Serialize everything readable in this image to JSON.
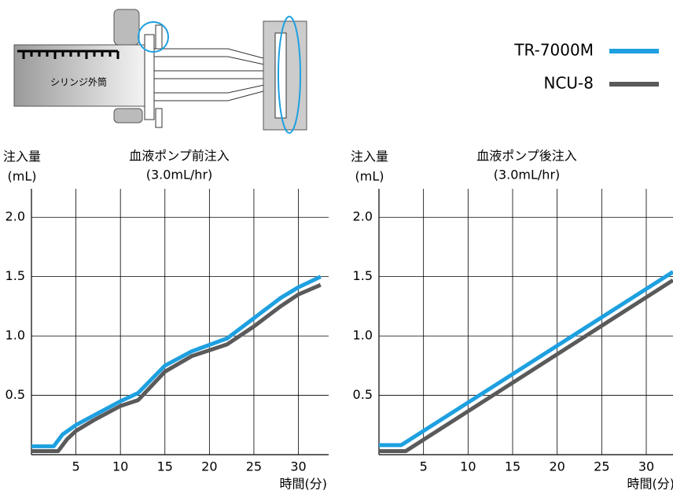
{
  "diagram": {
    "label": "シリンジ外筒"
  },
  "chart_data": [
    {
      "type": "line",
      "title": "血液ポンプ前注入",
      "subtitle": "(3.0mL/hr)",
      "ylabel": "注入量",
      "yunit": "(mL)",
      "xlabel": "時間(分)",
      "xlim": [
        0,
        33.4
      ],
      "ylim": [
        0,
        2.24
      ],
      "xticks": [
        5,
        10,
        15,
        20,
        25,
        30
      ],
      "yticks": [
        0.5,
        {
          "value": 1.0,
          "label": "1.0"
        },
        1.5,
        {
          "value": 2.0,
          "label": "2.0"
        }
      ],
      "grid": true,
      "series": [
        {
          "name": "TR-7000M",
          "color": "#1ea0e0",
          "x": [
            0,
            2.5,
            3.5,
            5,
            7,
            10,
            12,
            15,
            18,
            22,
            25,
            28,
            30,
            32.5
          ],
          "values": [
            0.07,
            0.07,
            0.17,
            0.25,
            0.33,
            0.45,
            0.52,
            0.75,
            0.87,
            0.98,
            1.15,
            1.32,
            1.41,
            1.5
          ]
        },
        {
          "name": "NCU-8",
          "color": "#5a5a5a",
          "x": [
            0,
            3,
            4,
            5,
            7,
            10,
            12,
            15,
            18,
            22,
            25,
            28,
            30,
            32.5
          ],
          "values": [
            0.03,
            0.03,
            0.13,
            0.2,
            0.29,
            0.41,
            0.46,
            0.7,
            0.83,
            0.93,
            1.08,
            1.25,
            1.35,
            1.43
          ]
        }
      ]
    },
    {
      "type": "line",
      "title": "血液ポンプ後注入",
      "subtitle": "(3.0mL/hr)",
      "ylabel": "注入量",
      "yunit": "(mL)",
      "xlabel": "時間(分)",
      "xlim": [
        0,
        33.0
      ],
      "ylim": [
        0,
        2.24
      ],
      "xticks": [
        5,
        10,
        15,
        20,
        25,
        30
      ],
      "yticks": [
        0.5,
        {
          "value": 1.0,
          "label": "1.0"
        },
        1.5,
        {
          "value": 2.0,
          "label": "2.0"
        }
      ],
      "grid": true,
      "series": [
        {
          "name": "TR-7000M",
          "color": "#1ea0e0",
          "x": [
            0,
            2.5,
            33
          ],
          "values": [
            0.08,
            0.08,
            1.54
          ]
        },
        {
          "name": "NCU-8",
          "color": "#5a5a5a",
          "x": [
            0,
            3,
            33
          ],
          "values": [
            0.03,
            0.03,
            1.47
          ]
        }
      ]
    }
  ]
}
